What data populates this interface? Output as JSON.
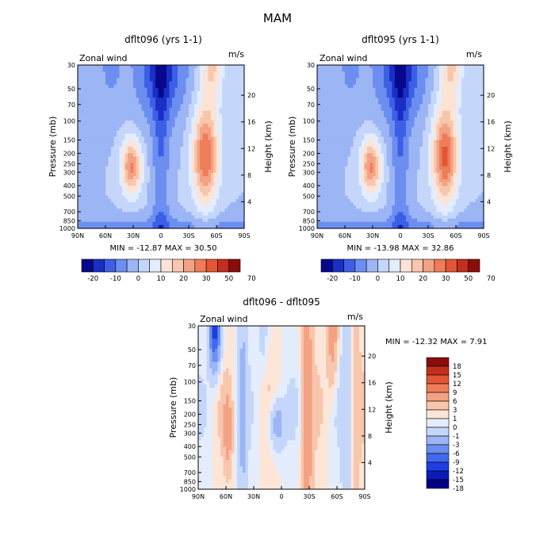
{
  "figure_title": "MAM",
  "colors": {
    "blue_red": [
      "#08088c",
      "#1a2fc4",
      "#3d5fe6",
      "#6b8ef0",
      "#9bb5f5",
      "#c4d6fa",
      "#e4edfd",
      "#fbe4d6",
      "#f8c6ad",
      "#f3a283",
      "#ef7d5a",
      "#e25535",
      "#c32e1f",
      "#8b0d0b"
    ],
    "diff": [
      "#000080",
      "#0a1bb8",
      "#1f3ee0",
      "#4169ee",
      "#6b8ef0",
      "#9bb5f5",
      "#c4d6fa",
      "#e4edfd",
      "#fde6d8",
      "#f8c6ad",
      "#f3a283",
      "#ef7d5a",
      "#e25535",
      "#c32e1f",
      "#8b0d0b"
    ]
  },
  "chart_data": [
    {
      "type": "heatmap",
      "id": "p1",
      "title": "dflt096 (yrs 1-1)",
      "label_left": "Zonal wind",
      "label_right": "m/s",
      "xlabel": "",
      "ylabel": "Pressure (mb)",
      "y2label": "Height (km)",
      "x_ticks": [
        "90N",
        "60N",
        "30N",
        "0",
        "30S",
        "60S",
        "90S"
      ],
      "y_ticks": [
        "30",
        "50",
        "70",
        "100",
        "150",
        "200",
        "250",
        "300",
        "400",
        "500",
        "700",
        "850",
        "1000"
      ],
      "y2_ticks": [
        "20",
        "16",
        "12",
        "8",
        "4"
      ],
      "stats": "MIN = -12.87   MAX = 30.50",
      "colorbar_labels": [
        "-20",
        "-10",
        "0",
        "10",
        "20",
        "30",
        "50",
        "70"
      ],
      "levels": [
        -20,
        -15,
        -10,
        -5,
        0,
        5,
        10,
        15,
        20,
        25,
        30,
        40,
        50,
        60,
        70
      ]
    },
    {
      "type": "heatmap",
      "id": "p2",
      "title": "dflt095 (yrs 1-1)",
      "label_left": "Zonal wind",
      "label_right": "m/s",
      "xlabel": "",
      "ylabel": "Pressure (mb)",
      "y2label": "Height (km)",
      "x_ticks": [
        "90N",
        "60N",
        "30N",
        "0",
        "30S",
        "60S",
        "90S"
      ],
      "y_ticks": [
        "30",
        "50",
        "70",
        "100",
        "150",
        "200",
        "250",
        "300",
        "400",
        "500",
        "700",
        "850",
        "1000"
      ],
      "y2_ticks": [
        "20",
        "16",
        "12",
        "8",
        "4"
      ],
      "stats": "MIN = -13.98   MAX = 32.86",
      "colorbar_labels": [
        "-20",
        "-10",
        "0",
        "10",
        "20",
        "30",
        "50",
        "70"
      ],
      "levels": [
        -20,
        -15,
        -10,
        -5,
        0,
        5,
        10,
        15,
        20,
        25,
        30,
        40,
        50,
        60,
        70
      ]
    },
    {
      "type": "heatmap",
      "id": "p3",
      "title": "dflt096 - dflt095",
      "label_left": "Zonal wind",
      "label_right": "m/s",
      "xlabel": "",
      "ylabel": "Pressure (mb)",
      "y2label": "Height (km)",
      "x_ticks": [
        "90N",
        "60N",
        "30N",
        "0",
        "30S",
        "60S",
        "90S"
      ],
      "y_ticks": [
        "30",
        "50",
        "70",
        "100",
        "150",
        "200",
        "250",
        "300",
        "400",
        "500",
        "700",
        "850",
        "1000"
      ],
      "y2_ticks": [
        "20",
        "16",
        "12",
        "8",
        "4"
      ],
      "stats": "MIN = -12.32   MAX =    7.91",
      "colorbar_labels": [
        "18",
        "15",
        "12",
        "9",
        "6",
        "3",
        "1",
        "0",
        "-1",
        "-3",
        "-6",
        "-9",
        "-12",
        "-15",
        "-18"
      ],
      "levels": [
        -18,
        -15,
        -12,
        -9,
        -6,
        -3,
        -1,
        0,
        1,
        3,
        6,
        9,
        12,
        15,
        18
      ]
    }
  ]
}
